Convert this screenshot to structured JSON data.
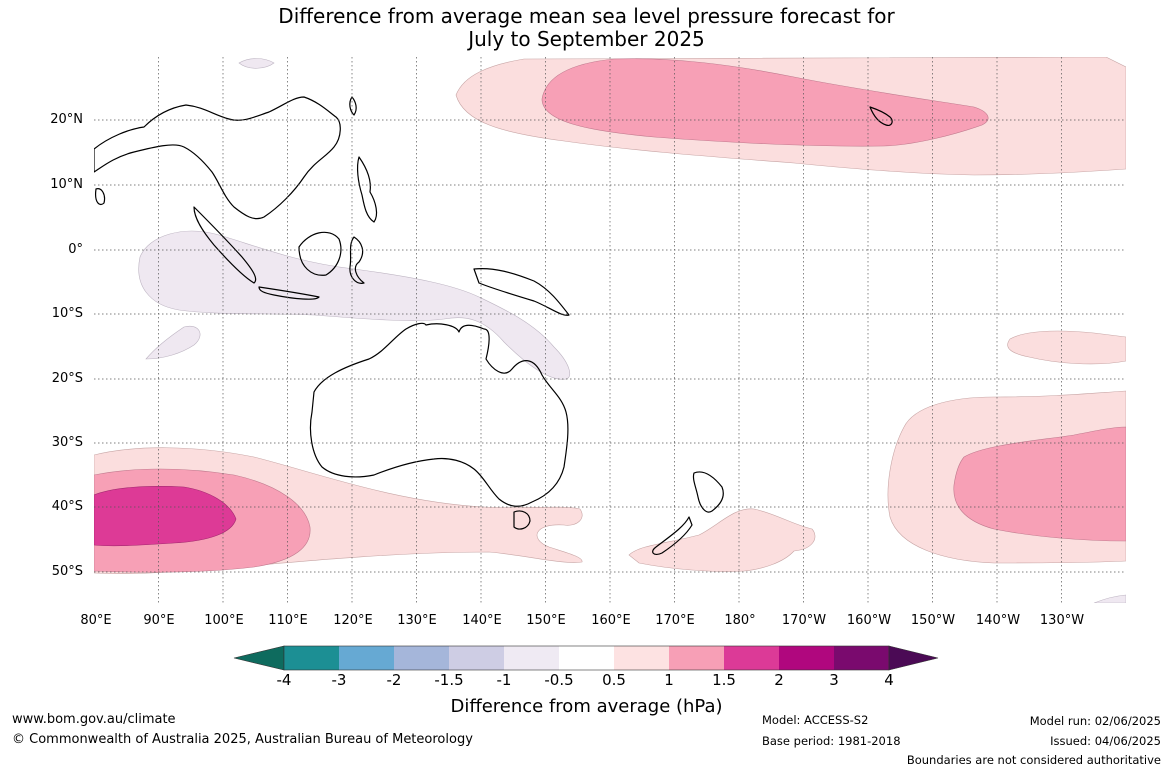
{
  "title": {
    "line1": "Difference from average mean sea level pressure forecast for",
    "line2": "July to September 2025"
  },
  "map": {
    "lat_labels": [
      "20°N",
      "10°N",
      "0°",
      "10°S",
      "20°S",
      "30°S",
      "40°S",
      "50°S"
    ],
    "lon_labels": [
      "80°E",
      "90°E",
      "100°E",
      "110°E",
      "120°E",
      "130°E",
      "140°E",
      "150°E",
      "160°E",
      "170°E",
      "180°",
      "170°W",
      "160°W",
      "150°W",
      "140°W",
      "130°W"
    ],
    "anomaly_regions": [
      {
        "name": "north-pacific",
        "level": "+0.5 to +1",
        "color": "#fbdede"
      },
      {
        "name": "north-pacific-core",
        "level": "+1 to +1.5",
        "color": "#f7a0b6"
      },
      {
        "name": "southern-indian-ocean",
        "level": "+0.5 to +1",
        "color": "#fbdede"
      },
      {
        "name": "southern-indian-ocean-mid",
        "level": "+1 to +1.5",
        "color": "#f7a0b6"
      },
      {
        "name": "southern-indian-ocean-core",
        "level": "+1.5 to +2",
        "color": "#dd3a96"
      },
      {
        "name": "south-pacific",
        "level": "+0.5 to +1",
        "color": "#fbdede"
      },
      {
        "name": "south-pacific-core",
        "level": "+1 to +1.5",
        "color": "#f7a0b6"
      },
      {
        "name": "maritime-continent",
        "level": "-0.5 to -1",
        "color": "#efe8f1"
      }
    ]
  },
  "colorbar": {
    "ticks": [
      "-4",
      "-3",
      "-2",
      "-1.5",
      "-1",
      "-0.5",
      "0.5",
      "1",
      "1.5",
      "2",
      "3",
      "4"
    ],
    "colors": [
      "#0e6b5e",
      "#1c8f94",
      "#66a9d3",
      "#a5b6da",
      "#cecde4",
      "#efeaf3",
      "#ffffff",
      "#fde2e2",
      "#f79fb6",
      "#dc3a97",
      "#b0077e",
      "#7a0a6e",
      "#4b0a55"
    ],
    "label": "Difference from average (hPa)"
  },
  "footer": {
    "website": "www.bom.gov.au/climate",
    "copyright": "© Commonwealth of Australia 2025, Australian Bureau of Meteorology",
    "model": "Model: ACCESS-S2",
    "base_period": "Base period: 1981-2018",
    "model_run": "Model run: 02/06/2025",
    "issued": "Issued: 04/06/2025",
    "disclaimer": "Boundaries are not considered authoritative"
  }
}
